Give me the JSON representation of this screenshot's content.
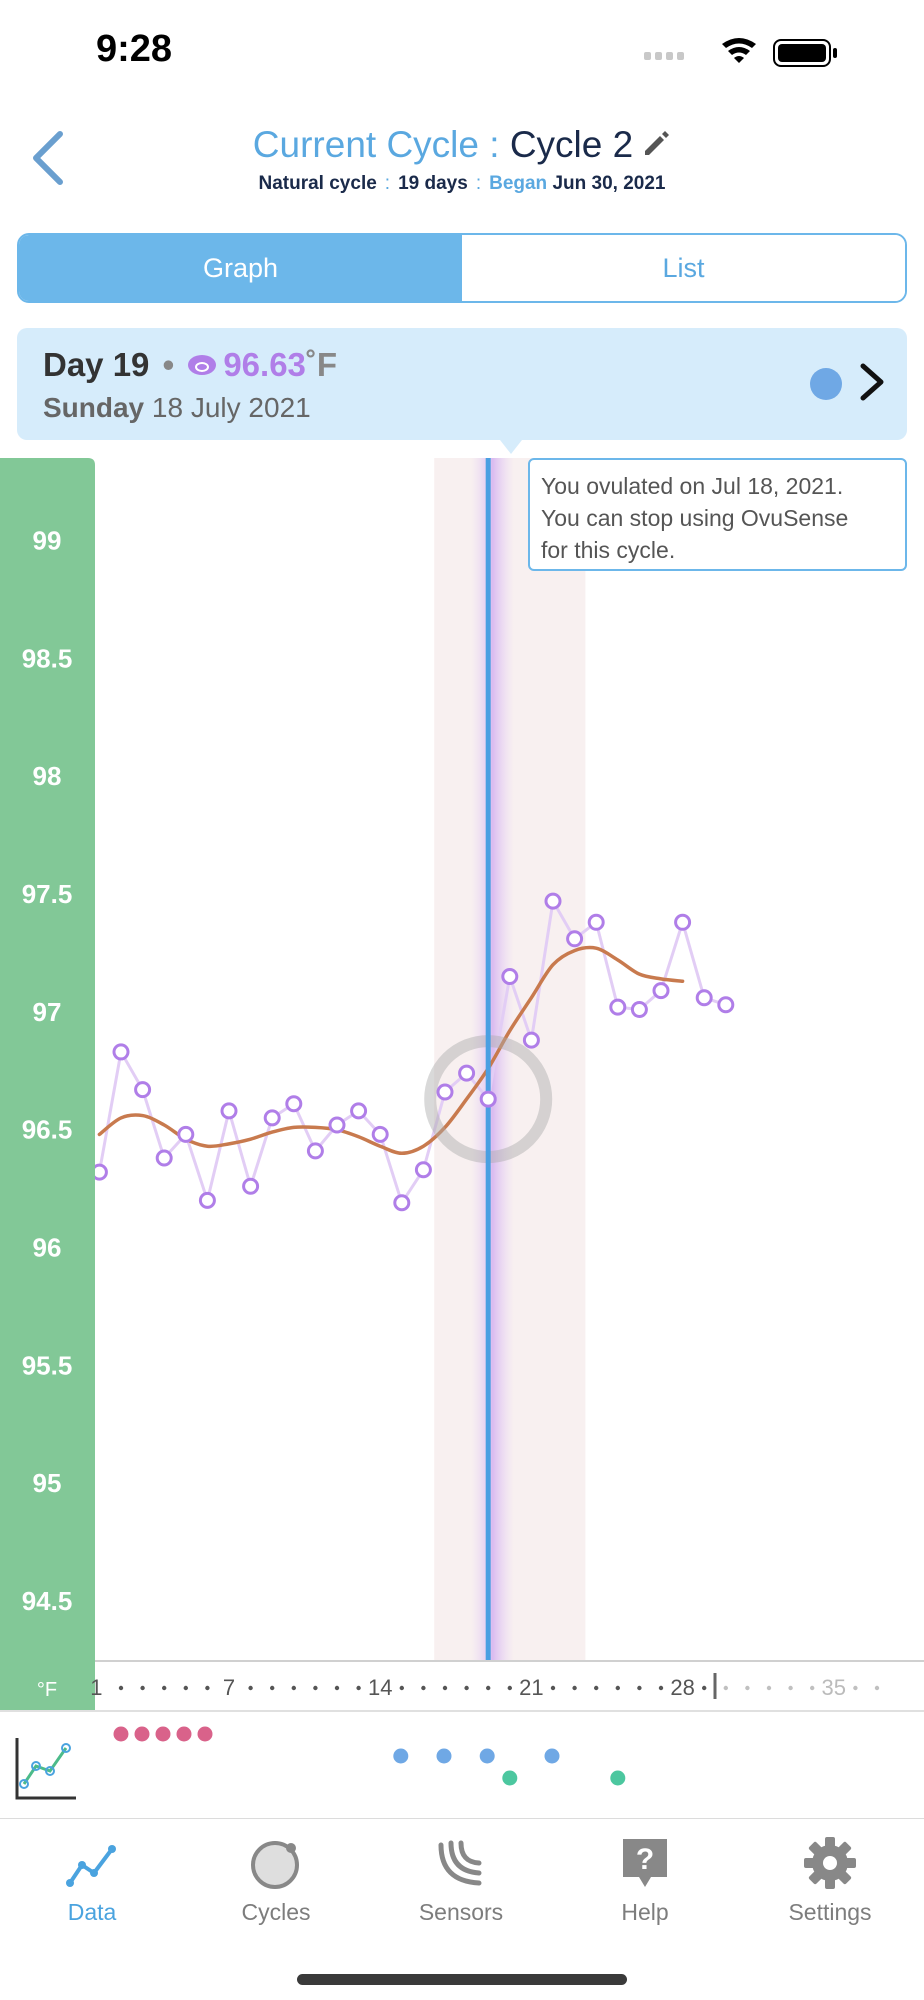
{
  "status_bar": {
    "time": "9:28"
  },
  "header": {
    "title_prefix": "Current Cycle : ",
    "cycle_name": "Cycle 2",
    "cycle_type": "Natural cycle",
    "separator": ":",
    "days": "19 days",
    "began_label": "Began",
    "began_date": "Jun 30, 2021"
  },
  "segments": {
    "graph_label": "Graph",
    "list_label": "List",
    "selected": "Graph"
  },
  "day_info": {
    "day_label": "Day 19",
    "bullet": "•",
    "temperature": "96.63",
    "unit": "˚F",
    "weekday": "Sunday",
    "date": "18 July 2021"
  },
  "tooltip": {
    "line1": "You ovulated on Jul 18, 2021.",
    "line2": "You can stop using OvuSense",
    "line3": "for this cycle."
  },
  "colors": {
    "axis_green": "#82c897",
    "accent_blue": "#6cb7ea",
    "reading_purple": "#b07ee8",
    "trend_orange": "#c87a4e",
    "ovulation_line": "#4a9fe2",
    "fertile_pink": "#f8f0f0",
    "marker_pink": "#d9628a",
    "marker_blue": "#6fa8e5",
    "marker_teal": "#4cc79f"
  },
  "chart_data": {
    "type": "line",
    "xlabel": "",
    "ylabel": "°F",
    "ylim": [
      94.25,
      99.35
    ],
    "xlim": [
      0,
      38
    ],
    "y_ticks": [
      "99",
      "98.5",
      "98",
      "97.5",
      "97",
      "96.5",
      "96",
      "95.5",
      "95",
      "94.5"
    ],
    "x_tick_labels": [
      "1",
      "7",
      "14",
      "21",
      "28",
      "35"
    ],
    "x_tick_days": [
      1,
      7,
      14,
      21,
      28,
      35
    ],
    "unit_label": "°F",
    "today_marker_day": 29.5,
    "ovulation_day": 19,
    "fertile_window": [
      16.5,
      23.5
    ],
    "ovulation_glow": [
      18.2,
      20.2
    ],
    "highlighted_day": 19,
    "series": [
      {
        "name": "",
        "style": "readings",
        "x": [
          1,
          2,
          3,
          4,
          5,
          6,
          7,
          8,
          9,
          10,
          11,
          12,
          13,
          14,
          15,
          16,
          17,
          18,
          19,
          20,
          21,
          22,
          23,
          24,
          25,
          26,
          27,
          28,
          29,
          30
        ],
        "y": [
          96.32,
          96.83,
          96.67,
          96.38,
          96.48,
          96.2,
          96.58,
          96.26,
          96.55,
          96.61,
          96.41,
          96.52,
          96.58,
          96.48,
          96.19,
          96.33,
          96.66,
          96.74,
          96.63,
          97.15,
          96.88,
          97.47,
          97.31,
          97.38,
          97.02,
          97.01,
          97.09,
          97.38,
          97.06,
          97.03
        ]
      },
      {
        "name": "",
        "style": "trend",
        "x": [
          1,
          2,
          3,
          4,
          5,
          6,
          7,
          8,
          9,
          10,
          11,
          12,
          13,
          14,
          15,
          16,
          17,
          18,
          19,
          20,
          21,
          22,
          23,
          24,
          25,
          26,
          27,
          28
        ],
        "y": [
          96.48,
          96.55,
          96.56,
          96.52,
          96.46,
          96.43,
          96.44,
          96.46,
          96.49,
          96.51,
          96.51,
          96.5,
          96.47,
          96.43,
          96.4,
          96.43,
          96.51,
          96.63,
          96.76,
          96.92,
          97.06,
          97.2,
          97.26,
          97.27,
          97.22,
          97.16,
          97.14,
          97.13
        ]
      }
    ]
  },
  "markers": {
    "pink_days": [
      1,
      2,
      3,
      4,
      5
    ],
    "blue_days": [
      15,
      17,
      19,
      22
    ],
    "teal_days": [
      20,
      25
    ]
  },
  "tabs": [
    {
      "label": "Data",
      "icon": "graph-icon",
      "active": true
    },
    {
      "label": "Cycles",
      "icon": "cycle-circle-icon",
      "active": false
    },
    {
      "label": "Sensors",
      "icon": "sensor-waves-icon",
      "active": false
    },
    {
      "label": "Help",
      "icon": "help-icon",
      "active": false
    },
    {
      "label": "Settings",
      "icon": "gear-icon",
      "active": false
    }
  ]
}
